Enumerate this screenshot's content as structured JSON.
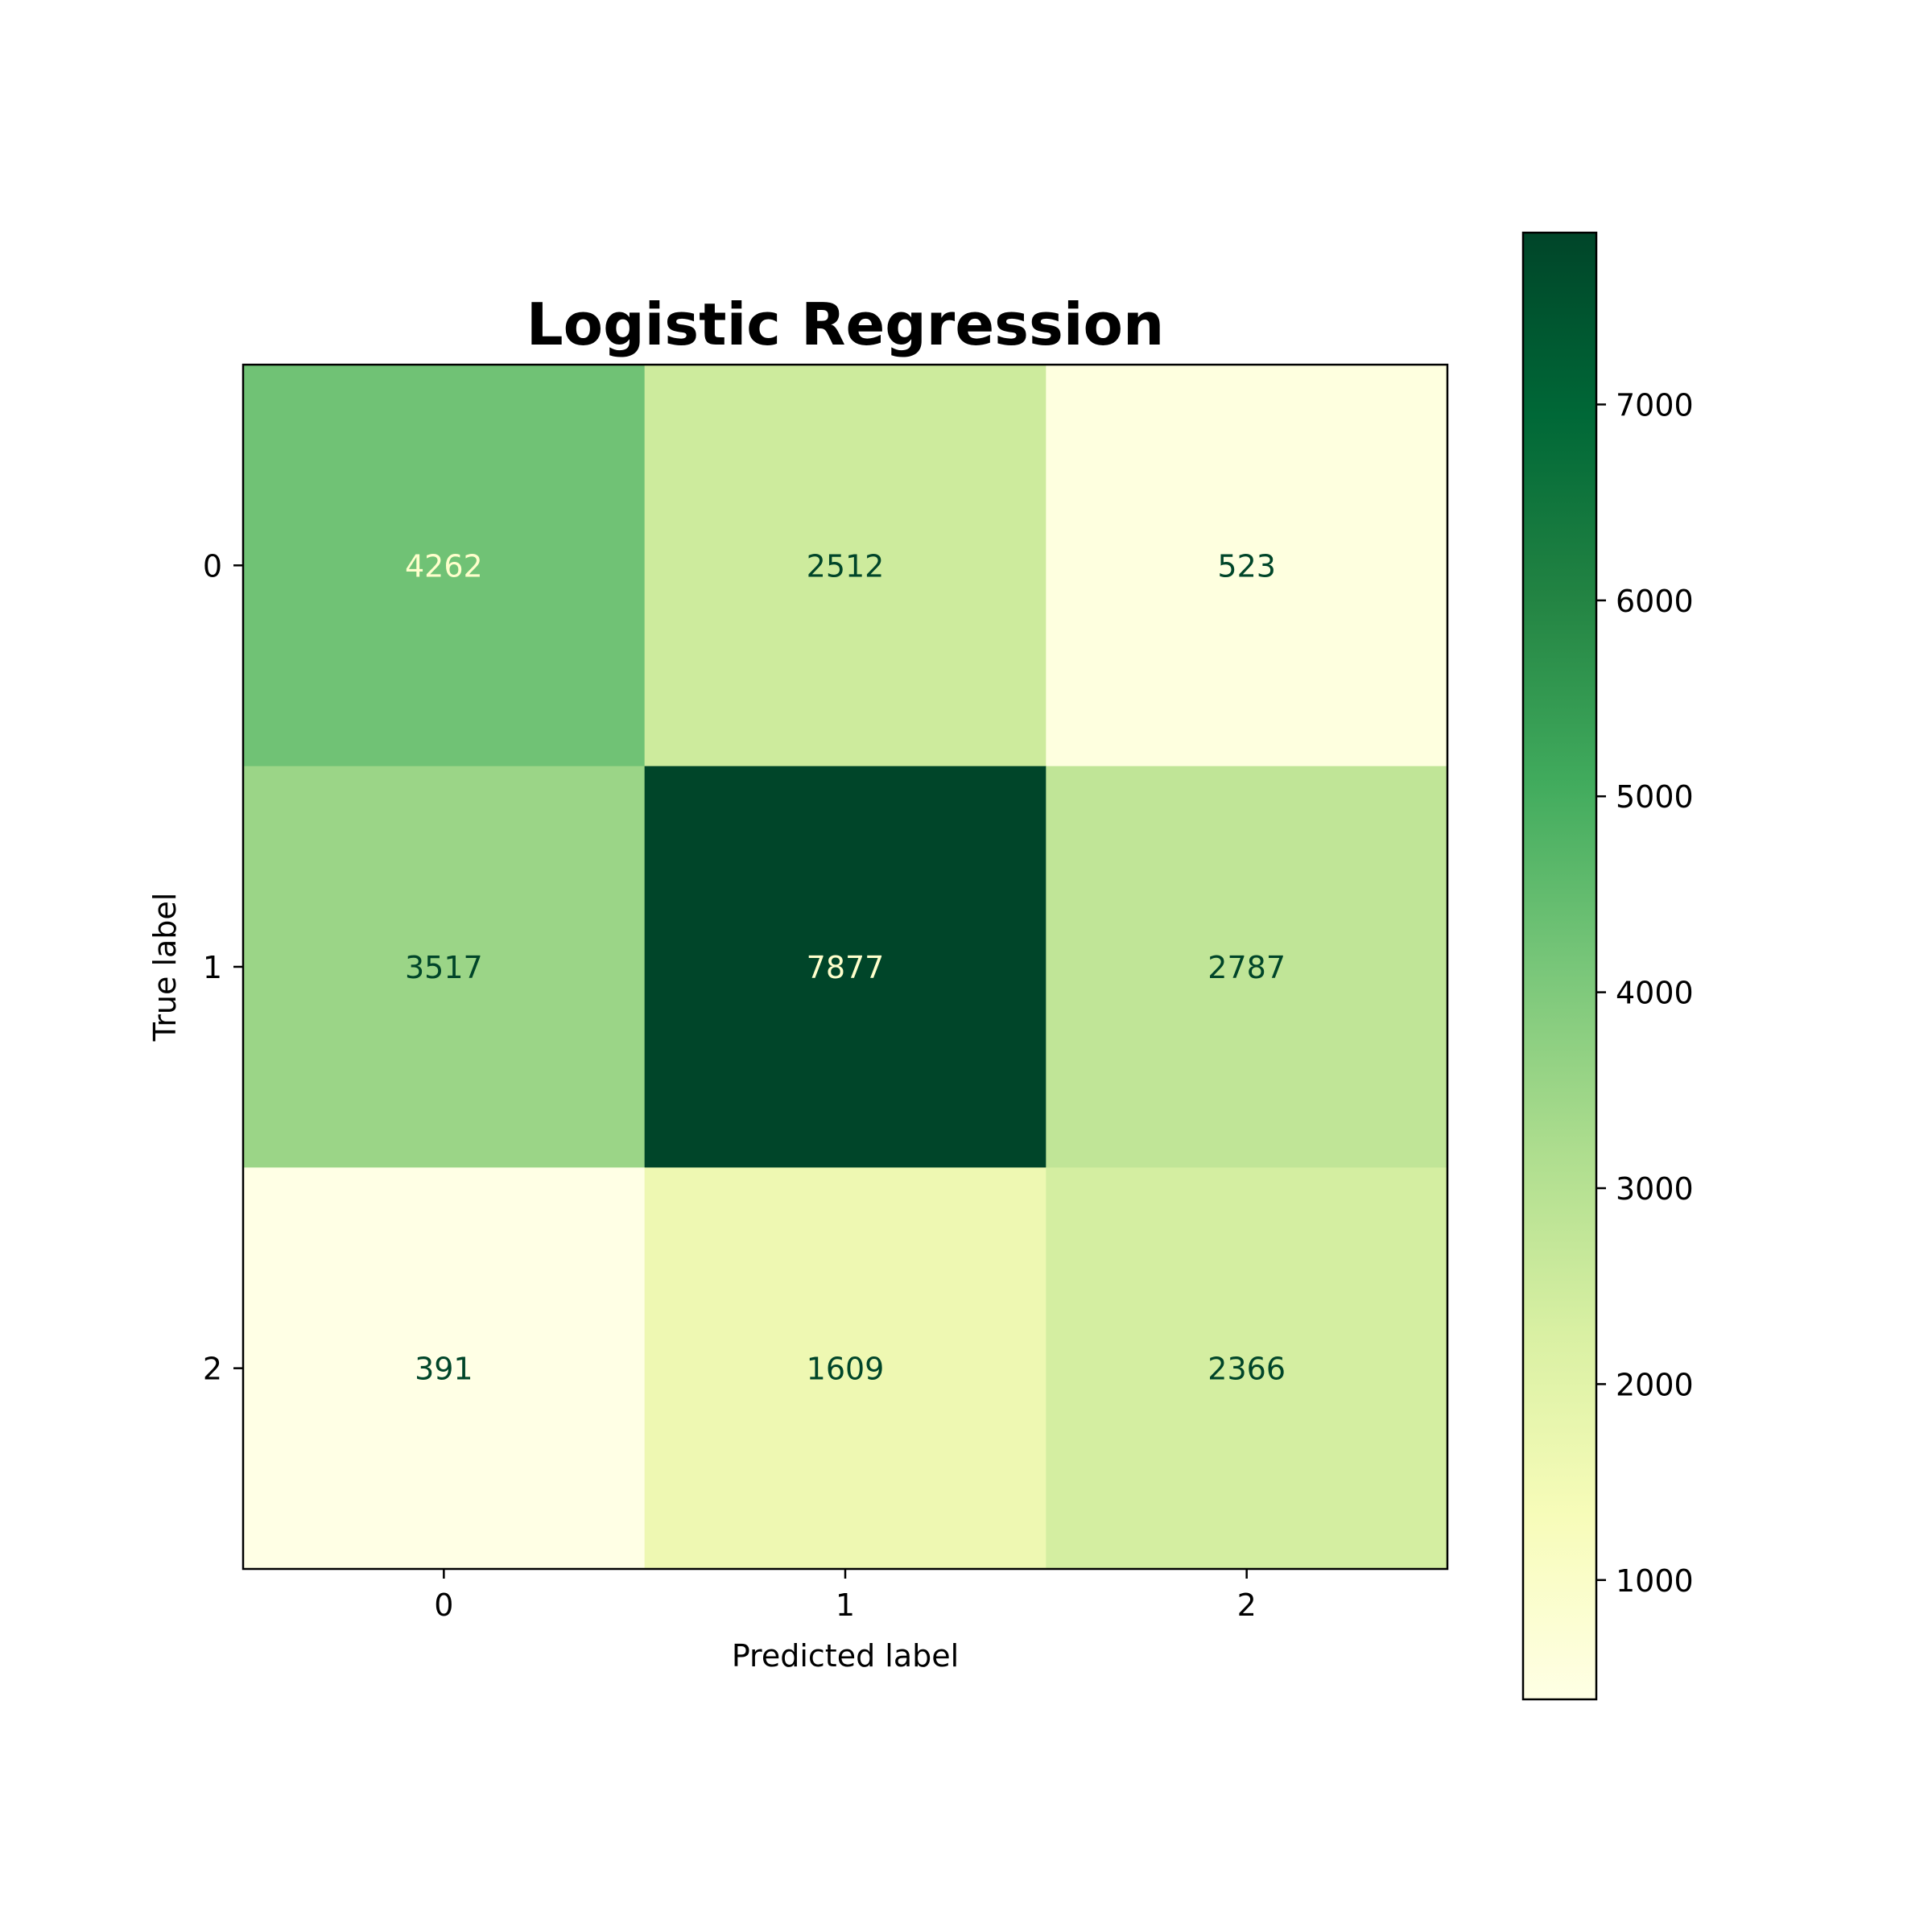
{
  "chart_data": {
    "type": "heatmap",
    "title": "Logistic Regression",
    "xlabel": "Predicted label",
    "ylabel": "True label",
    "x_categories": [
      "0",
      "1",
      "2"
    ],
    "y_categories": [
      "0",
      "1",
      "2"
    ],
    "matrix": [
      [
        4262,
        2512,
        523
      ],
      [
        3517,
        7877,
        2787
      ],
      [
        391,
        1609,
        2366
      ]
    ],
    "colorbar": {
      "colormap": "YlGn",
      "vmin": 391,
      "vmax": 7877,
      "ticks": [
        1000,
        2000,
        3000,
        4000,
        5000,
        6000,
        7000
      ],
      "tick_labels": [
        "1000",
        "2000",
        "3000",
        "4000",
        "5000",
        "6000",
        "7000"
      ]
    },
    "grid": false,
    "text_colors": {
      "light": "#ffffcc",
      "dark": "#004529"
    }
  }
}
